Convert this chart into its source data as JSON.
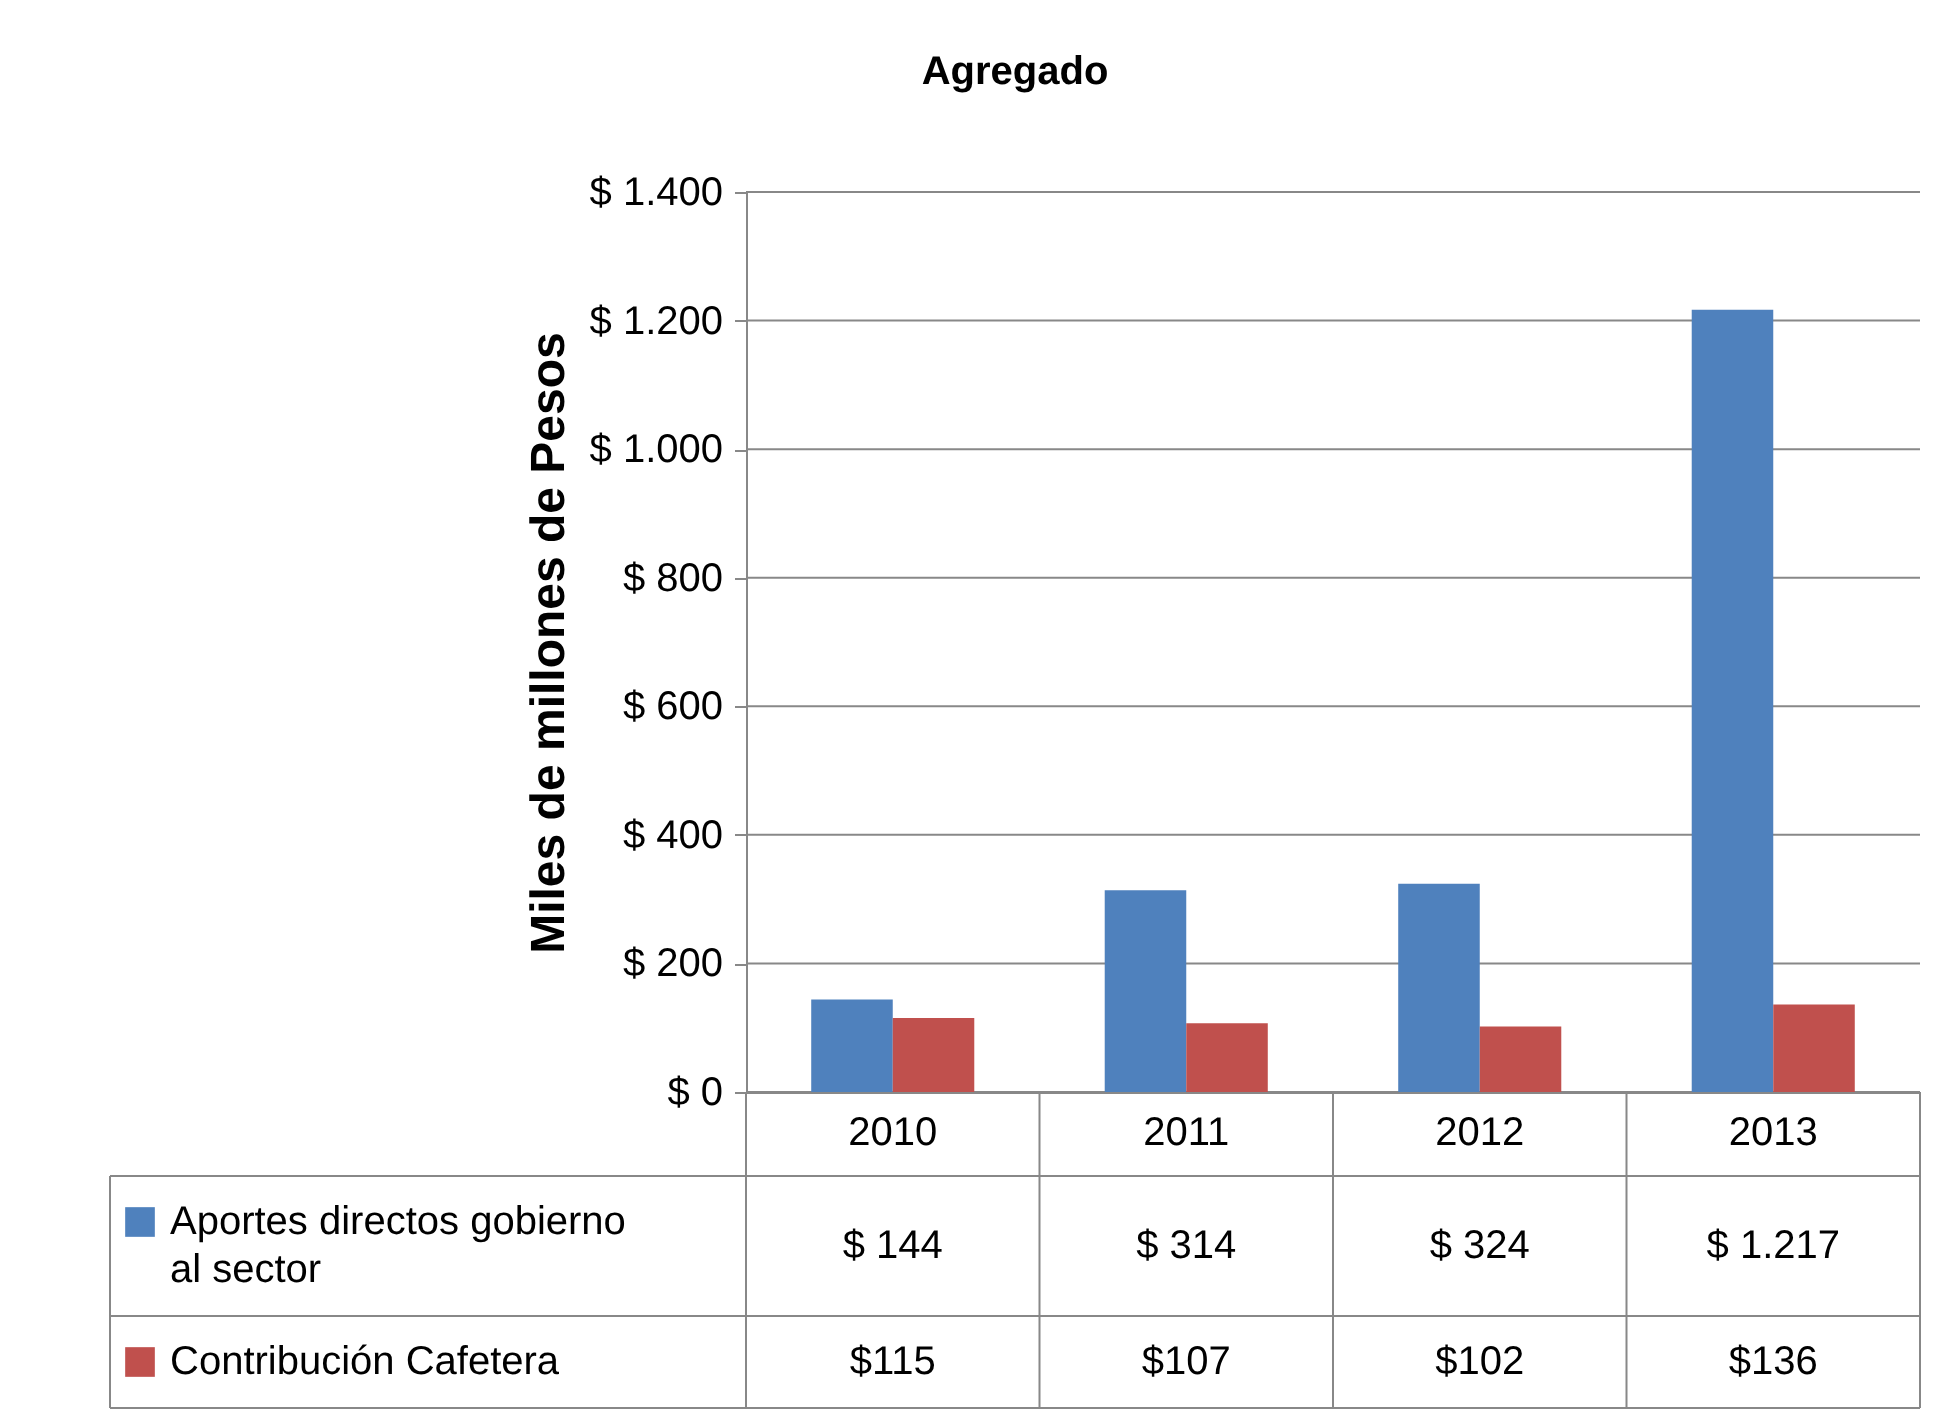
{
  "chart_data": {
    "type": "bar",
    "title": "Agregado",
    "ylabel": "Miles de millones de Pesos",
    "categories": [
      "2010",
      "2011",
      "2012",
      "2013"
    ],
    "series": [
      {
        "name": "Aportes directos gobierno al sector",
        "color": "#4f81bd",
        "values": [
          144,
          314,
          324,
          1217
        ],
        "value_labels": [
          "$ 144",
          "$ 314",
          "$ 324",
          "$ 1.217"
        ]
      },
      {
        "name": "Contribución Cafetera",
        "color": "#c0504d",
        "values": [
          115,
          107,
          102,
          136
        ],
        "value_labels": [
          "$115",
          "$107",
          "$102",
          "$136"
        ]
      }
    ],
    "ylim": [
      0,
      1400
    ],
    "yticks": [
      {
        "value": 0,
        "label": "$ 0"
      },
      {
        "value": 200,
        "label": "$ 200"
      },
      {
        "value": 400,
        "label": "$ 400"
      },
      {
        "value": 600,
        "label": "$ 600"
      },
      {
        "value": 800,
        "label": "$ 800"
      },
      {
        "value": 1000,
        "label": "$ 1.000"
      },
      {
        "value": 1200,
        "label": "$ 1.200"
      },
      {
        "value": 1400,
        "label": "$ 1.400"
      }
    ],
    "grid": "y",
    "legend": "bottom"
  }
}
